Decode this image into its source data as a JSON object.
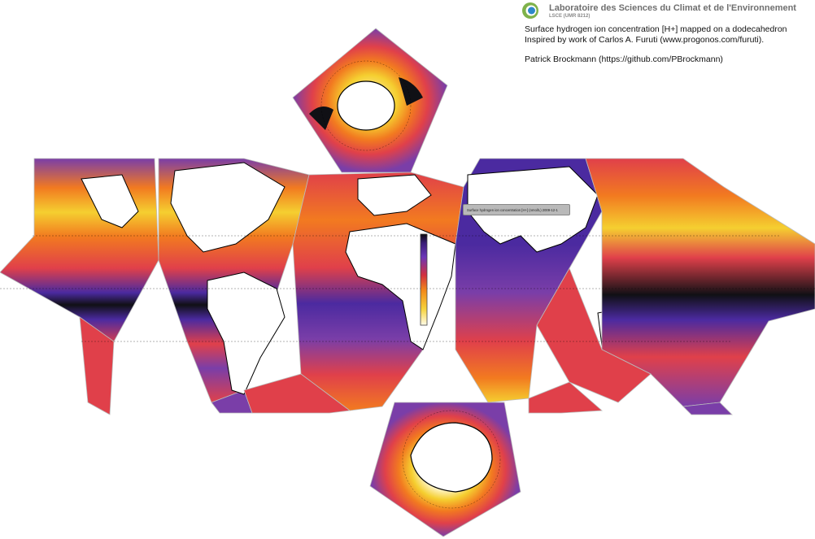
{
  "header": {
    "lab_name": "Laboratoire des Sciences du Climat et de l'Environnement",
    "lab_sub": "LSCE (UMR 8212)",
    "logo_icon": "lsce-logo-icon",
    "desc_line1": "Surface hydrogen ion concentration [H+] mapped on a dodecahedron",
    "desc_line2": "Inspired by work of Carlos A. Furuti (www.progonos.com/furuti).",
    "desc_line3": "Patrick Brockmann (https://github.com/PBrockmann)"
  },
  "tooltip": {
    "text": "Surface hydrogen ion concentration [H+] (nmol/L)   2009-12-1"
  },
  "colorbar": {
    "colors": [
      "#0a0a10",
      "#3b1e78",
      "#6b35b8",
      "#d2303e",
      "#f28a1a",
      "#f6d23a",
      "#fffbe8"
    ]
  },
  "legend_colors": {
    "ocean_dark": "#101015",
    "ocean_indigo": "#4b2aa0",
    "ocean_purple": "#7a3ea8",
    "ocean_red": "#e0404a",
    "ocean_orange": "#f27a20",
    "ocean_yellow": "#f5cf30",
    "ocean_pale": "#fff5c8",
    "land": "#ffffff"
  }
}
